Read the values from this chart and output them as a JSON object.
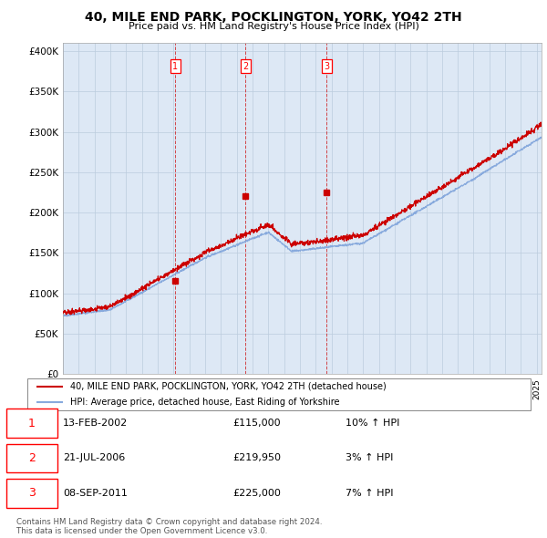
{
  "title": "40, MILE END PARK, POCKLINGTON, YORK, YO42 2TH",
  "subtitle": "Price paid vs. HM Land Registry's House Price Index (HPI)",
  "ylabel_ticks": [
    "£0",
    "£50K",
    "£100K",
    "£150K",
    "£200K",
    "£250K",
    "£300K",
    "£350K",
    "£400K"
  ],
  "ytick_vals": [
    0,
    50000,
    100000,
    150000,
    200000,
    250000,
    300000,
    350000,
    400000
  ],
  "ylim": [
    0,
    410000
  ],
  "xlim_start": 1995.0,
  "xlim_end": 2025.3,
  "red_line_color": "#cc0000",
  "blue_line_color": "#88aadd",
  "chart_bg_color": "#dde8f5",
  "bg_color": "#ffffff",
  "grid_color": "#bbccdd",
  "sale_markers": [
    {
      "year": 2002.12,
      "price": 115000,
      "label": "1"
    },
    {
      "year": 2006.55,
      "price": 219950,
      "label": "2"
    },
    {
      "year": 2011.69,
      "price": 225000,
      "label": "3"
    }
  ],
  "legend_line1": "40, MILE END PARK, POCKLINGTON, YORK, YO42 2TH (detached house)",
  "legend_line2": "HPI: Average price, detached house, East Riding of Yorkshire",
  "table_rows": [
    {
      "num": "1",
      "date": "13-FEB-2002",
      "price": "£115,000",
      "hpi": "10% ↑ HPI"
    },
    {
      "num": "2",
      "date": "21-JUL-2006",
      "price": "£219,950",
      "hpi": "3% ↑ HPI"
    },
    {
      "num": "3",
      "date": "08-SEP-2011",
      "price": "£225,000",
      "hpi": "7% ↑ HPI"
    }
  ],
  "footer": "Contains HM Land Registry data © Crown copyright and database right 2024.\nThis data is licensed under the Open Government Licence v3.0.",
  "dashed_years": [
    2002.12,
    2006.55,
    2011.69
  ]
}
